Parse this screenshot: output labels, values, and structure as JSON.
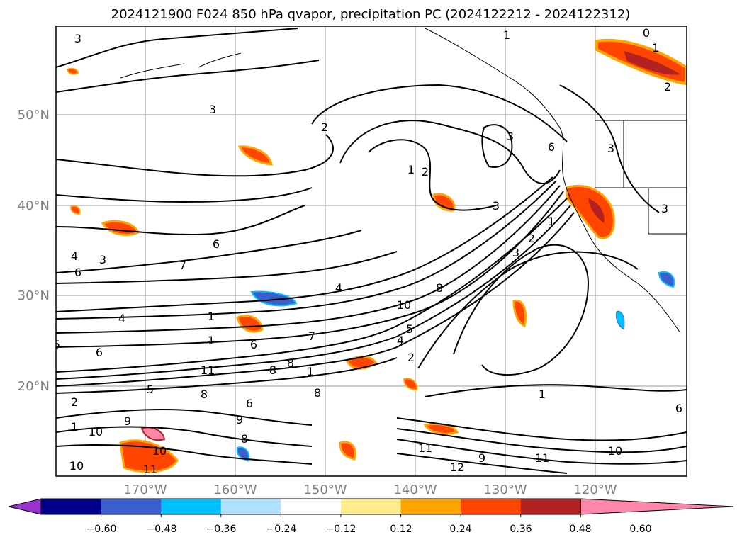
{
  "title": "2024121900 F024 850 hPa qvapor, precipitation PC (2024122212 - 2024122312)",
  "map": {
    "lat_labels": [
      "50°N",
      "40°N",
      "30°N",
      "20°N"
    ],
    "lon_labels": [
      "170°W",
      "160°W",
      "150°W",
      "140°W",
      "130°W",
      "120°W"
    ],
    "contour_labels": [
      "3",
      "1",
      "0",
      "1",
      "2",
      "3",
      "3",
      "2",
      "3",
      "3",
      "6",
      "1",
      "2",
      "3",
      "1",
      "6",
      "7",
      "4",
      "3",
      "4",
      "8",
      "1",
      "6",
      "7",
      "1",
      "5",
      "6",
      "8",
      "10",
      "4",
      "2",
      "11",
      "8",
      "8",
      "1",
      "6",
      "8",
      "1",
      "9",
      "2",
      "1",
      "11",
      "10",
      "9",
      "8",
      "12",
      "11",
      "10",
      "11",
      "10",
      "6",
      "10",
      "2",
      "9",
      "5",
      "6",
      "4",
      "5",
      "3"
    ]
  },
  "colorbar": {
    "colors": [
      "#9932cc",
      "#00008b",
      "#3a5fcd",
      "#00bfff",
      "#b0e2ff",
      "#ffffff",
      "#ffec8b",
      "#ffa500",
      "#ff4500",
      "#b22222",
      "#ff88aa"
    ],
    "tick_labels": [
      "−0.60",
      "−0.48",
      "−0.36",
      "−0.24",
      "−0.12",
      "0.12",
      "0.24",
      "0.36",
      "0.48",
      "0.60"
    ]
  }
}
